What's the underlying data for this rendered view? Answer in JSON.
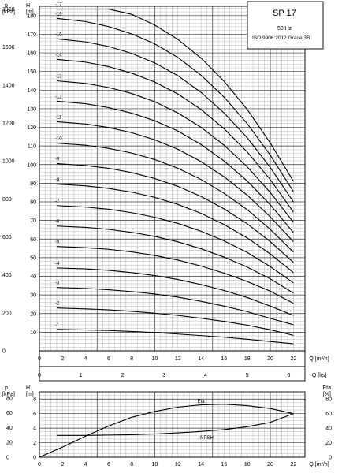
{
  "chart_data": [
    {
      "type": "line",
      "title": "SP 17",
      "subtitle_lines": [
        "50 Hz",
        "ISO 9906:2012 Grade 3B"
      ],
      "xlabel": "Q [m³/h]",
      "xlabel_secondary": "Q [l/s]",
      "ylabel_left": "p [kPa]",
      "ylabel_right": "H [m]",
      "x_ticks": [
        0,
        2,
        4,
        6,
        8,
        10,
        12,
        14,
        16,
        18,
        20,
        22
      ],
      "x_ticks_secondary": [
        0,
        1,
        2,
        3,
        4,
        5,
        6
      ],
      "y_ticks_head": [
        10,
        20,
        30,
        40,
        50,
        60,
        70,
        80,
        90,
        100,
        110,
        120,
        130,
        140,
        150,
        160,
        170,
        180
      ],
      "y_ticks_pressure": [
        0,
        200,
        400,
        600,
        800,
        1000,
        1200,
        1400,
        1600,
        1800
      ],
      "xlim": [
        0,
        23
      ],
      "ylim": [
        0,
        185
      ],
      "grid": true,
      "series": [
        {
          "name": "-1",
          "x": [
            1.5,
            4,
            6,
            8,
            10,
            12,
            14,
            16,
            18,
            20,
            22
          ],
          "y": [
            11.5,
            11.2,
            10.9,
            10.4,
            9.8,
            9.0,
            8.2,
            7.3,
            6.2,
            5.0,
            3.8
          ]
        },
        {
          "name": "-2",
          "x": [
            1.5,
            4,
            6,
            8,
            10,
            12,
            14,
            16,
            18,
            20,
            22
          ],
          "y": [
            23,
            22.5,
            22.0,
            21.2,
            20.2,
            19.0,
            17.5,
            15.8,
            13.8,
            11.3,
            8.3
          ]
        },
        {
          "name": "-3",
          "x": [
            1.5,
            4,
            6,
            8,
            10,
            12,
            14,
            16,
            18,
            20,
            22
          ],
          "y": [
            34,
            33.5,
            32.8,
            31.8,
            30.5,
            28.8,
            26.6,
            24.0,
            21.0,
            17.4,
            14.0
          ]
        },
        {
          "name": "-4",
          "x": [
            1.5,
            4,
            6,
            8,
            10,
            12,
            14,
            16,
            18,
            20,
            22
          ],
          "y": [
            44.5,
            44.0,
            43.2,
            42.0,
            40.4,
            38.3,
            35.6,
            32.4,
            28.6,
            24.0,
            19.0
          ]
        },
        {
          "name": "-5",
          "x": [
            1.5,
            4,
            6,
            8,
            10,
            12,
            14,
            16,
            18,
            20,
            22
          ],
          "y": [
            56,
            55.4,
            54.5,
            53.1,
            51.2,
            48.7,
            45.5,
            41.7,
            37.2,
            32.0,
            25.5
          ]
        },
        {
          "name": "-6",
          "x": [
            1.5,
            4,
            6,
            8,
            10,
            12,
            14,
            16,
            18,
            20,
            22
          ],
          "y": [
            67,
            66.3,
            65.2,
            63.6,
            61.4,
            58.5,
            54.8,
            50.3,
            45.0,
            38.6,
            31.0
          ]
        },
        {
          "name": "-7",
          "x": [
            1.5,
            4,
            6,
            8,
            10,
            12,
            14,
            16,
            18,
            20,
            22
          ],
          "y": [
            78,
            77.2,
            76.0,
            74.2,
            71.7,
            68.4,
            64.2,
            59.0,
            52.8,
            45.2,
            36.5
          ]
        },
        {
          "name": "-8",
          "x": [
            1.5,
            4,
            6,
            8,
            10,
            12,
            14,
            16,
            18,
            20,
            22
          ],
          "y": [
            89.5,
            88.6,
            87.2,
            85.2,
            82.4,
            78.6,
            73.8,
            67.8,
            60.6,
            52.0,
            42.0
          ]
        },
        {
          "name": "-9",
          "x": [
            1.5,
            4,
            6,
            8,
            10,
            12,
            14,
            16,
            18,
            20,
            22
          ],
          "y": [
            100.5,
            99.5,
            98.0,
            95.7,
            92.5,
            88.3,
            82.9,
            76.2,
            68.2,
            58.6,
            47.5
          ]
        },
        {
          "name": "-10",
          "x": [
            1.5,
            4,
            6,
            8,
            10,
            12,
            14,
            16,
            18,
            20,
            22
          ],
          "y": [
            111.5,
            110.4,
            108.7,
            106.2,
            102.7,
            98.0,
            92.0,
            84.6,
            75.8,
            65.2,
            53.0
          ]
        },
        {
          "name": "-11",
          "x": [
            1.5,
            4,
            6,
            8,
            10,
            12,
            14,
            16,
            18,
            20,
            22
          ],
          "y": [
            123,
            121.8,
            119.9,
            117.1,
            113.3,
            108.2,
            101.6,
            93.4,
            83.6,
            71.9,
            58.5
          ]
        },
        {
          "name": "-12",
          "x": [
            1.5,
            4,
            6,
            8,
            10,
            12,
            14,
            16,
            18,
            20,
            22
          ],
          "y": [
            134,
            132.7,
            130.6,
            127.6,
            123.5,
            118.0,
            110.8,
            101.9,
            91.2,
            78.4,
            63.5
          ]
        },
        {
          "name": "-13",
          "x": [
            1.5,
            4,
            6,
            8,
            10,
            12,
            14,
            16,
            18,
            20,
            22
          ],
          "y": [
            145,
            143.6,
            141.4,
            138.2,
            133.7,
            127.7,
            120.0,
            110.4,
            98.8,
            85.0,
            69.0
          ]
        },
        {
          "name": "-14",
          "x": [
            1.5,
            4,
            6,
            8,
            10,
            12,
            14,
            16,
            18,
            20,
            22
          ],
          "y": [
            156.5,
            155.0,
            152.6,
            149.1,
            144.3,
            137.9,
            129.6,
            119.2,
            106.8,
            91.9,
            74.5
          ]
        },
        {
          "name": "-15",
          "x": [
            1.5,
            4,
            6,
            8,
            10,
            12,
            14,
            16,
            18,
            20,
            22
          ],
          "y": [
            167.5,
            165.9,
            163.4,
            159.7,
            154.6,
            147.7,
            138.8,
            127.7,
            114.4,
            98.4,
            80.0
          ]
        },
        {
          "name": "-16",
          "x": [
            1.5,
            4,
            6,
            8,
            10,
            12,
            14,
            16,
            18,
            20,
            22
          ],
          "y": [
            178.5,
            176.8,
            174.1,
            170.2,
            164.8,
            157.5,
            148.0,
            136.2,
            122.0,
            105.0,
            85.5
          ]
        },
        {
          "name": "-17",
          "x": [
            1.5,
            4,
            6,
            8,
            10,
            12,
            14,
            16,
            18,
            20,
            22
          ],
          "y": [
            189.5,
            187.7,
            184.9,
            180.7,
            174.9,
            167.2,
            157.2,
            144.7,
            129.6,
            111.6,
            91.0
          ]
        }
      ]
    },
    {
      "type": "line",
      "xlabel": "Q [m³/h]",
      "ylabel_left": "p [kPa]",
      "ylabel_left2": "H [m]",
      "ylabel_right": "Eta [%]",
      "x_ticks": [
        0,
        2,
        4,
        6,
        8,
        10,
        12,
        14,
        16,
        18,
        20,
        22
      ],
      "y_ticks_head": [
        0,
        2,
        4,
        6,
        8
      ],
      "y_ticks_pressure": [
        0,
        20,
        40,
        60,
        80
      ],
      "y_ticks_eta": [
        0,
        20,
        40,
        60,
        80
      ],
      "xlim": [
        0,
        23
      ],
      "ylim": [
        0,
        9
      ],
      "grid": true,
      "series": [
        {
          "name": "Eta",
          "x": [
            0,
            2,
            4,
            6,
            8,
            10,
            12,
            14,
            16,
            18,
            20,
            22
          ],
          "y": [
            0,
            1.4,
            2.9,
            4.3,
            5.5,
            6.3,
            6.9,
            7.2,
            7.3,
            7.1,
            6.7,
            6.0
          ]
        },
        {
          "name": "NPSH",
          "x": [
            1.5,
            4,
            6,
            8,
            10,
            12,
            14,
            16,
            18,
            20,
            22
          ],
          "y": [
            3.0,
            3.0,
            3.05,
            3.1,
            3.2,
            3.35,
            3.55,
            3.8,
            4.2,
            4.8,
            6.0
          ]
        }
      ]
    }
  ]
}
